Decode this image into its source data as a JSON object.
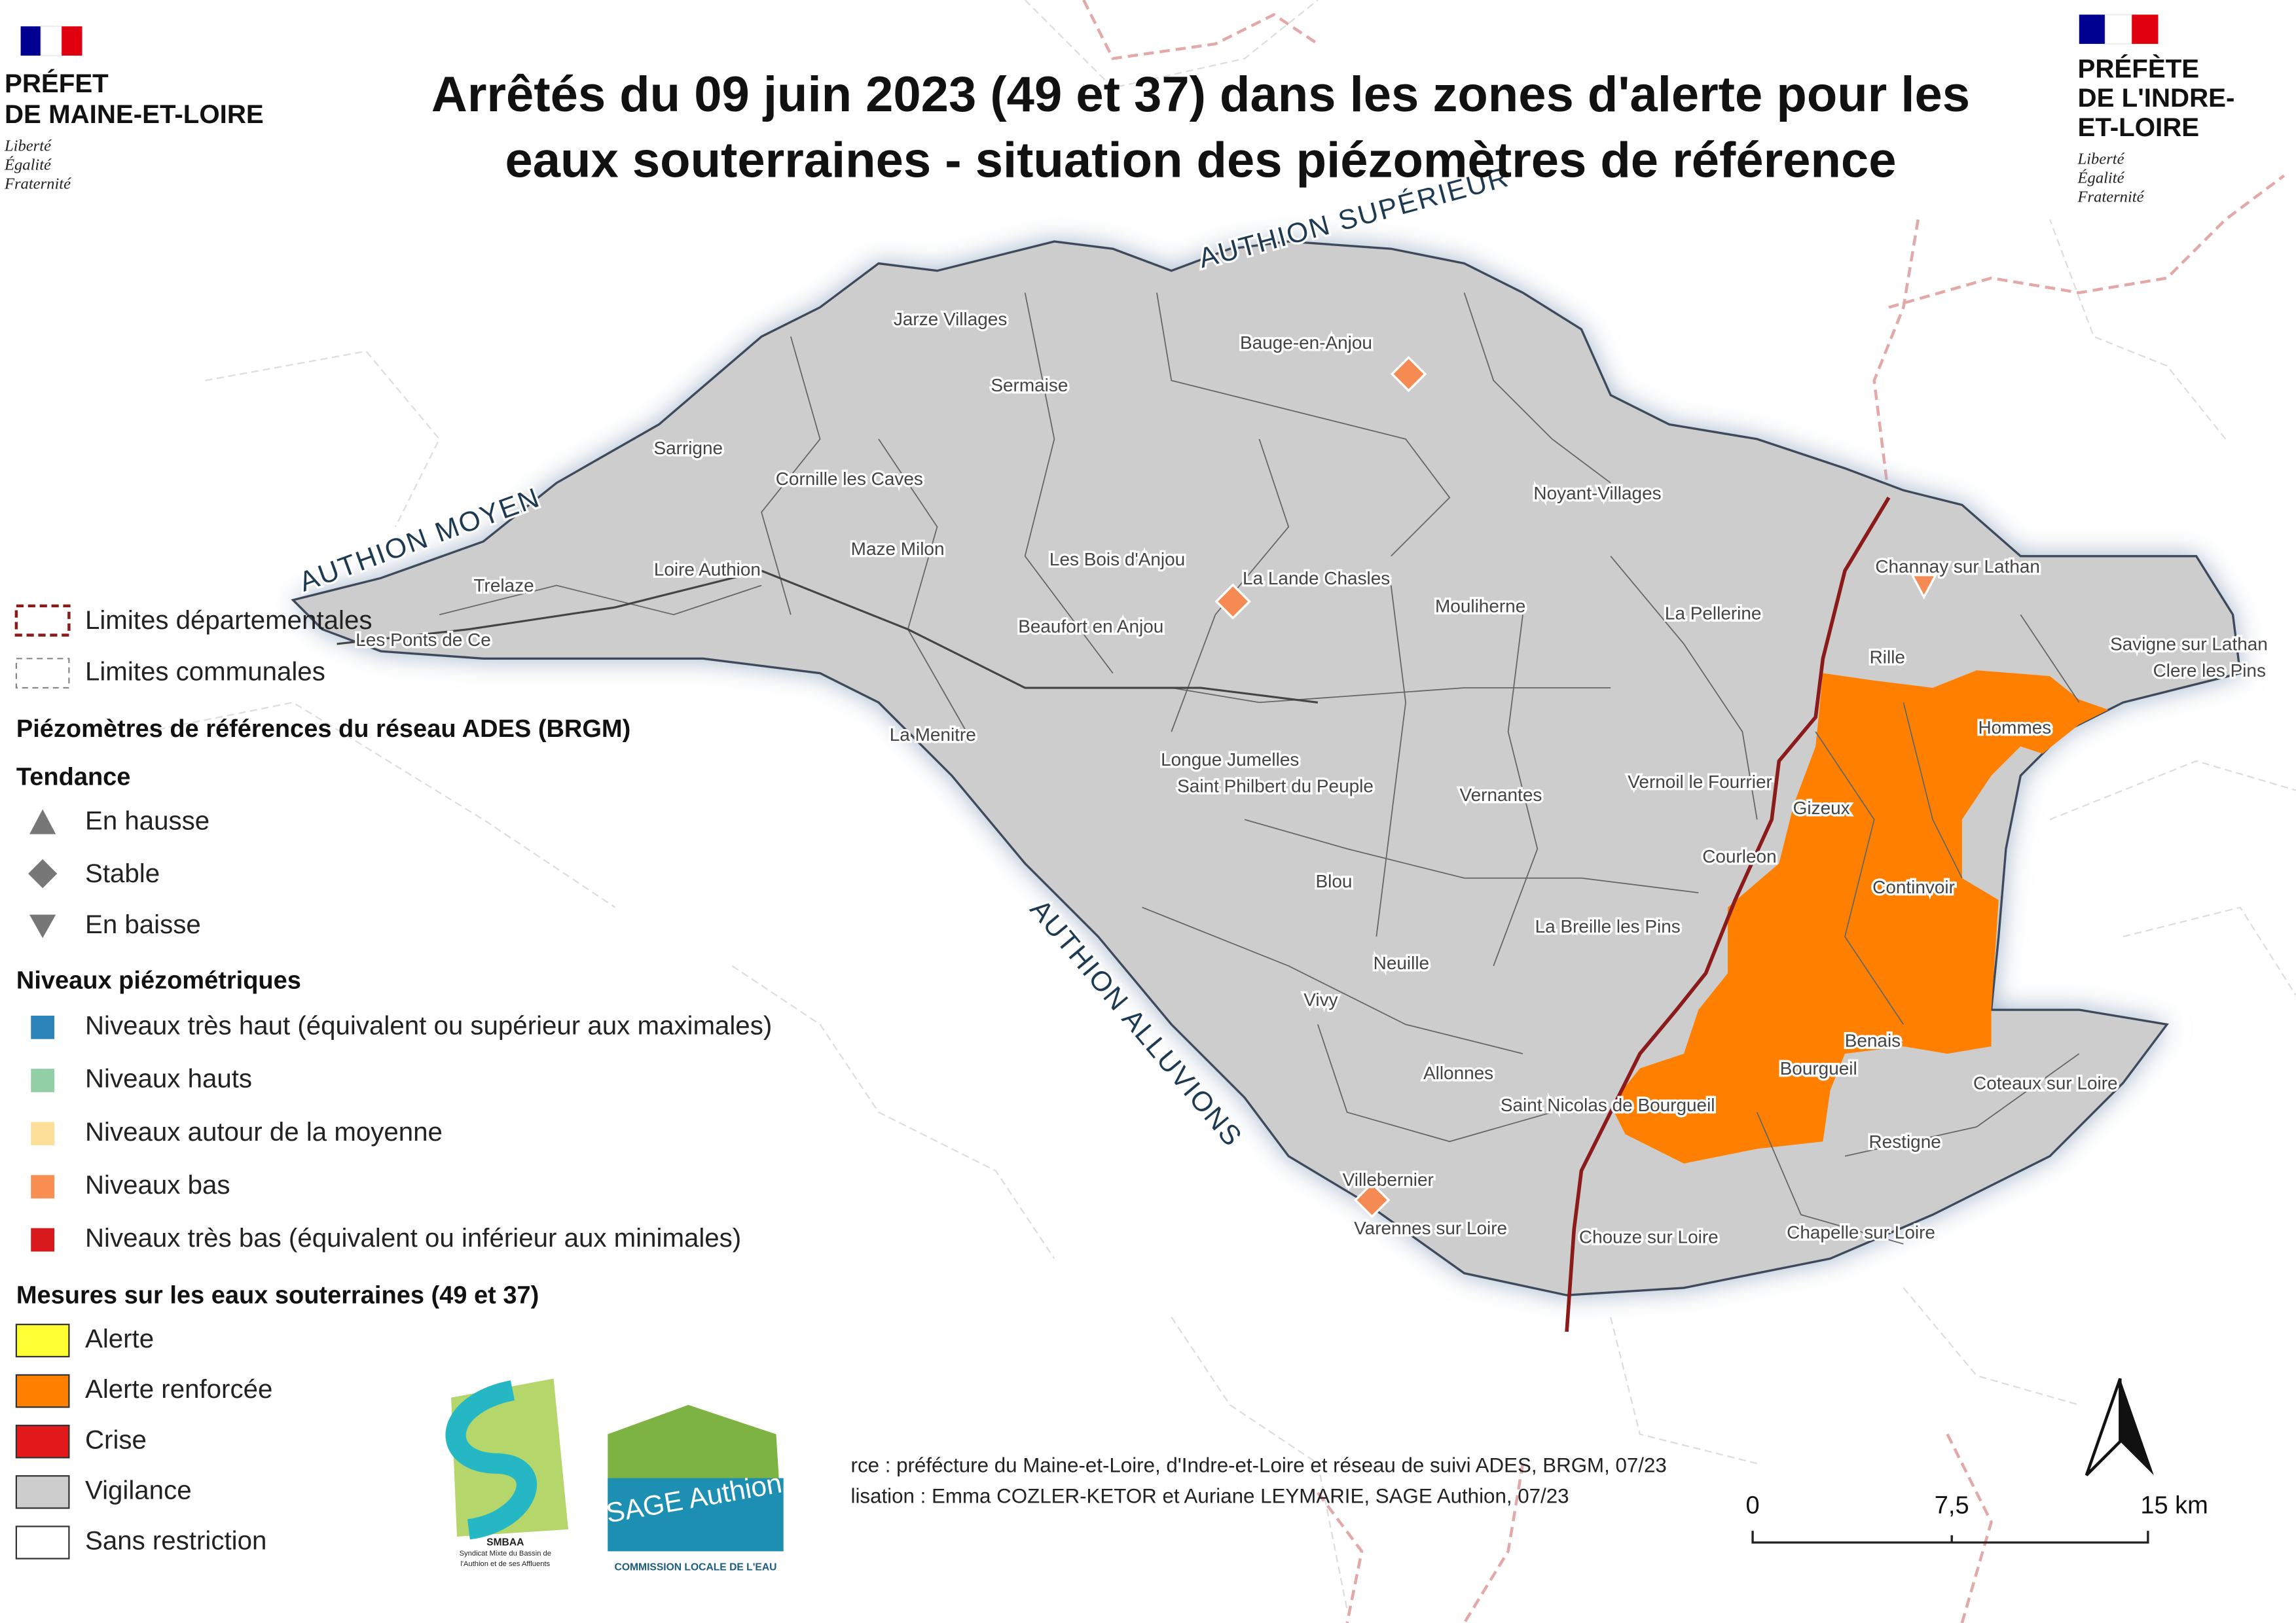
{
  "header": {
    "title": [
      "Arrêtés du 09 juin 2023 (49 et 37) dans les zones d'alerte pour les",
      "eaux souterraines - situation des piézomètres de référence"
    ],
    "left_logo": {
      "lines": [
        "PRÉFET",
        "DE MAINE-ET-LOIRE"
      ],
      "motto": [
        "Liberté",
        "Égalité",
        "Fraternité"
      ]
    },
    "right_logo": {
      "lines": [
        "PRÉFÈTE",
        "DE L'INDRE-",
        "ET-LOIRE"
      ],
      "motto": [
        "Liberté",
        "Égalité",
        "Fraternité"
      ]
    }
  },
  "map": {
    "zones": [
      "AUTHION SUPÉRIEUR",
      "AUTHION MOYEN",
      "AUTHION ALLUVIONS"
    ],
    "communes": [
      "Jarze Villages",
      "Sermaise",
      "Bauge-en-Anjou",
      "Sarrigne",
      "Cornille les Caves",
      "Noyant-Villages",
      "Maze Milon",
      "Les Bois d'Anjou",
      "Loire Authion",
      "La Lande Chasles",
      "Trelaze",
      "Mouliherne",
      "La Pellerine",
      "Beaufort en Anjou",
      "Les Ponts de Ce",
      "Channay sur Lathan",
      "Rille",
      "Savigne sur Lathan",
      "Clere les Pins",
      "Hommes",
      "La Menitre",
      "Longue Jumelles",
      "Saint Philbert du Peuple",
      "Vernantes",
      "Vernoil le Fourrier",
      "Gizeux",
      "Courleon",
      "Continvoir",
      "Blou",
      "La Breille les Pins",
      "Neuille",
      "Vivy",
      "Benais",
      "Bourgueil",
      "Allonnes",
      "Coteaux sur Loire",
      "Saint Nicolas de Bourgueil",
      "Restigne",
      "Villebernier",
      "Varennes sur Loire",
      "Chouze sur Loire",
      "Chapelle sur Loire"
    ]
  },
  "legend": {
    "limits": [
      "Limites départementales",
      "Limites communales"
    ],
    "piezo_title": "Piézomètres de références du réseau ADES (BRGM)",
    "trend_title": "Tendance",
    "trends": [
      "En hausse",
      "Stable",
      "En baisse"
    ],
    "levels_title": "Niveaux piézométriques",
    "levels": [
      "Niveaux très haut (équivalent ou supérieur aux maximales)",
      "Niveaux hauts",
      "Niveaux autour de la moyenne",
      "Niveaux bas",
      "Niveaux très bas (équivalent ou inférieur aux minimales)"
    ],
    "measures_title": "Mesures sur les eaux souterraines (49 et 37)",
    "measures": [
      "Alerte",
      "Alerte renforcée",
      "Crise",
      "Vigilance",
      "Sans restriction"
    ]
  },
  "credits": [
    "rce : préfécture du Maine-et-Loire, d'Indre-et-Loire et réseau de suivi ADES, BRGM, 07/23",
    "lisation : Emma COZLER-KETOR et Auriane LEYMARIE, SAGE Authion, 07/23"
  ],
  "scale_bar": [
    "0",
    "7,5",
    "15 km"
  ],
  "logos": {
    "smbaa": "SMBAA",
    "smbaa_sub": [
      "Syndicat Mixte du Bassin de",
      "l'Authion et de ses Affluents"
    ],
    "sage": "SAGE Authion",
    "sage_sub": "COMMISSION LOCALE DE L'EAU"
  }
}
